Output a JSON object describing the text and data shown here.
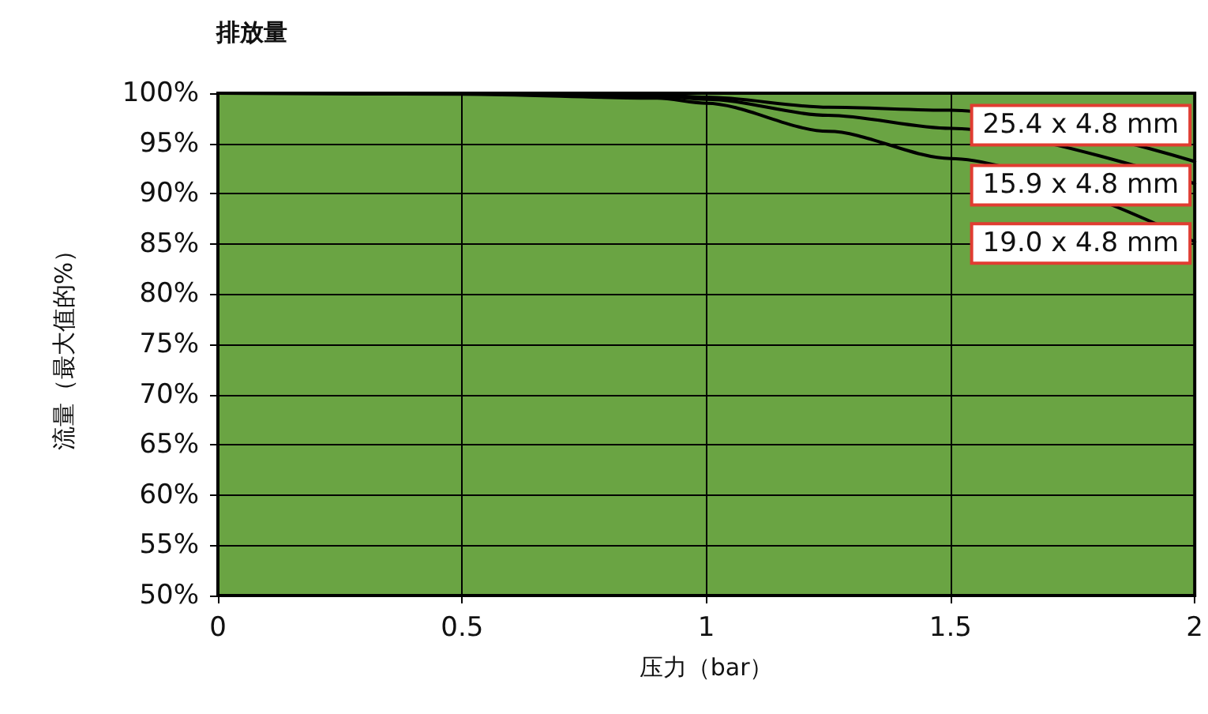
{
  "chart_data": {
    "type": "line",
    "title": "排放量",
    "xlabel": "压力（bar）",
    "ylabel": "流量（最大值的%）",
    "x": [
      0,
      0.5,
      0.9,
      1.0,
      1.25,
      1.5,
      2.0
    ],
    "series": [
      {
        "name": "25.4 x 4.8 mm",
        "color": "#000000",
        "values": [
          100,
          100,
          99.8,
          99.6,
          98.6,
          98.3,
          93.2
        ]
      },
      {
        "name": "15.9 x 4.8 mm",
        "color": "#000000",
        "values": [
          100,
          100,
          99.7,
          99.4,
          97.8,
          96.5,
          91
        ]
      },
      {
        "name": "19.0 x 4.8 mm",
        "color": "#000000",
        "values": [
          100,
          99.9,
          99.5,
          99,
          96.2,
          93.5,
          85.2
        ]
      }
    ],
    "xlim": [
      0,
      2
    ],
    "xticks": [
      0,
      0.5,
      1,
      1.5,
      2
    ],
    "ylim": [
      50,
      100
    ],
    "yticks": [
      {
        "value": 50,
        "label": "50%"
      },
      {
        "value": 55,
        "label": "55%"
      },
      {
        "value": 60,
        "label": "60%"
      },
      {
        "value": 65,
        "label": "65%"
      },
      {
        "value": 70,
        "label": "70%"
      },
      {
        "value": 75,
        "label": "75%"
      },
      {
        "value": 80,
        "label": "80%"
      },
      {
        "value": 85,
        "label": "85%"
      },
      {
        "value": 90,
        "label": "90%"
      },
      {
        "value": 95,
        "label": "95%"
      },
      {
        "value": 100,
        "label": "100%"
      }
    ],
    "grid": true,
    "marker": "none",
    "line_style": "solid"
  }
}
